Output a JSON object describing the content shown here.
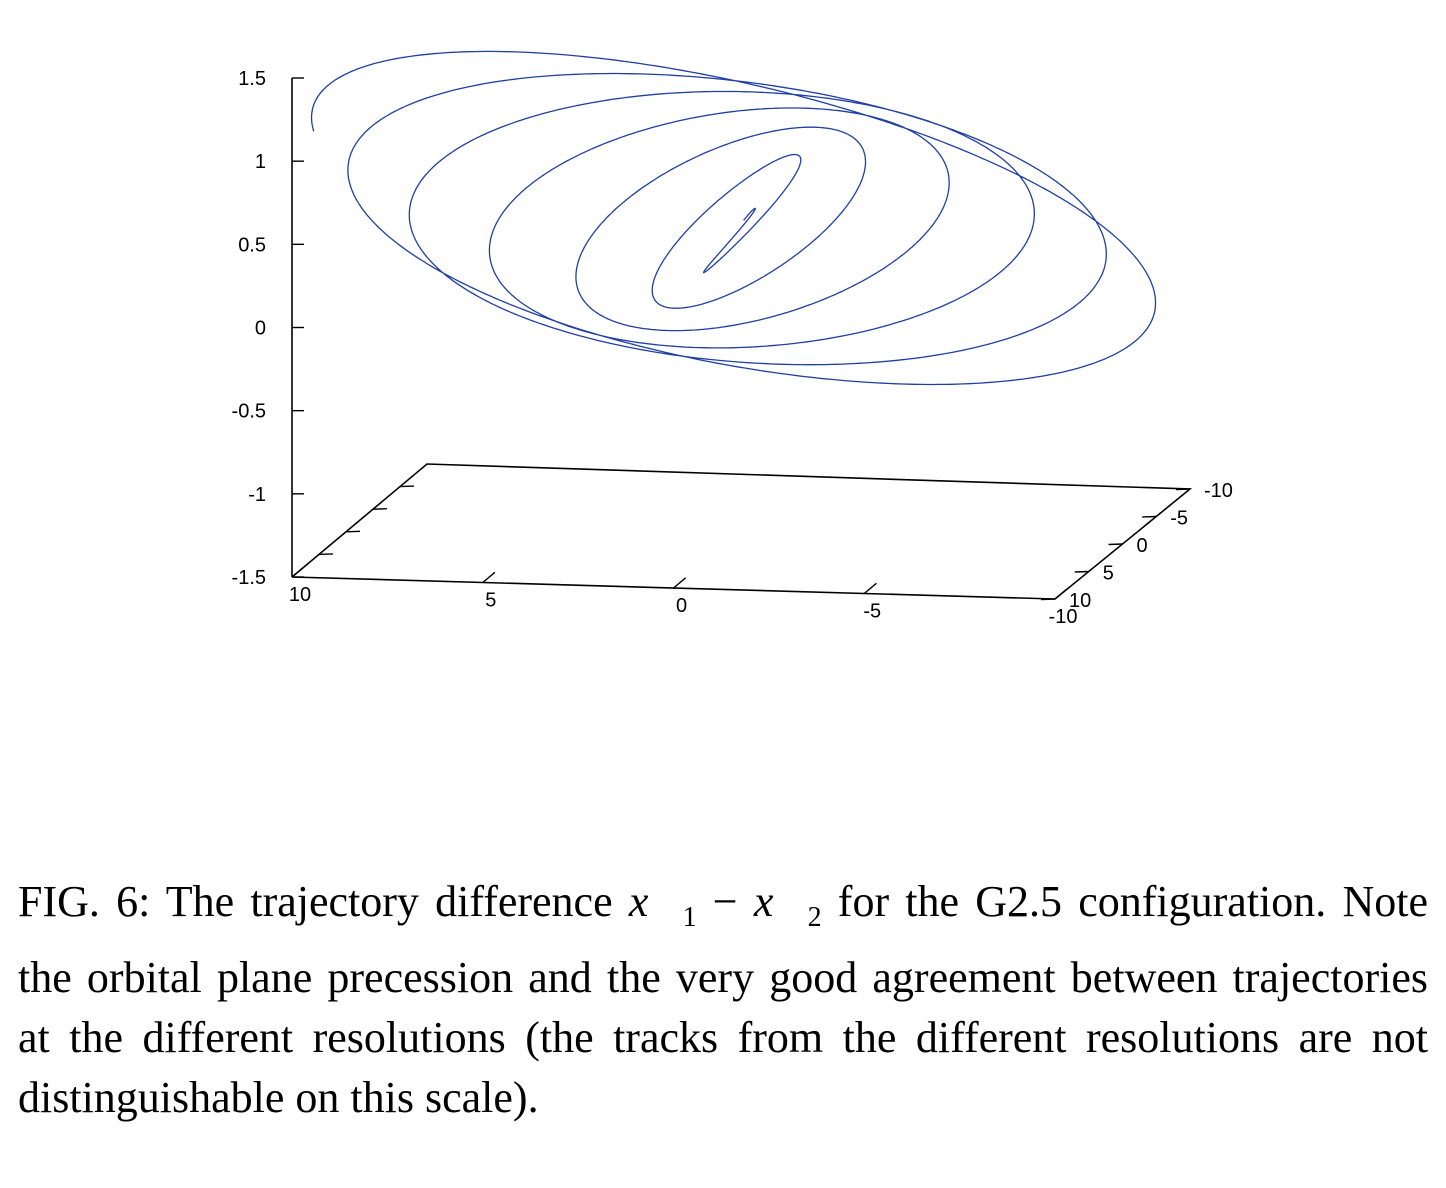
{
  "chart_data": {
    "type": "line3d",
    "title": "",
    "z_axis": {
      "range": [
        -1.5,
        1.5
      ],
      "ticks": [
        "1.5",
        "1",
        "0.5",
        "0",
        "-0.5",
        "-1",
        "-1.5"
      ]
    },
    "x_axis": {
      "range": [
        10,
        -10
      ],
      "ticks": [
        "10",
        "5",
        "0",
        "-5",
        "-10"
      ]
    },
    "y_axis": {
      "range": [
        10,
        -10
      ],
      "ticks": [
        "10",
        "5",
        "0",
        "-5",
        "-10"
      ]
    },
    "series": [
      {
        "color": "#1f3fa6",
        "description_visible": false,
        "shape": "precessing inspiral orbit",
        "orbit_radius_start": 11,
        "orbit_radius_end": 0.2,
        "z_amplitude_start": 1.35
      }
    ]
  },
  "caption": {
    "label": "FIG. 6:",
    "text_before": "The trajectory difference",
    "math_x1": "x⃗",
    "sub1": "1",
    "minus": "−",
    "math_x2": "x⃗",
    "sub2": "2",
    "text_after": "for the G2.5 configuration. Note the orbital plane precession and the very good agreement between trajectories at the different resolutions (the tracks from the different resolutions are not distinguishable on this scale)."
  }
}
